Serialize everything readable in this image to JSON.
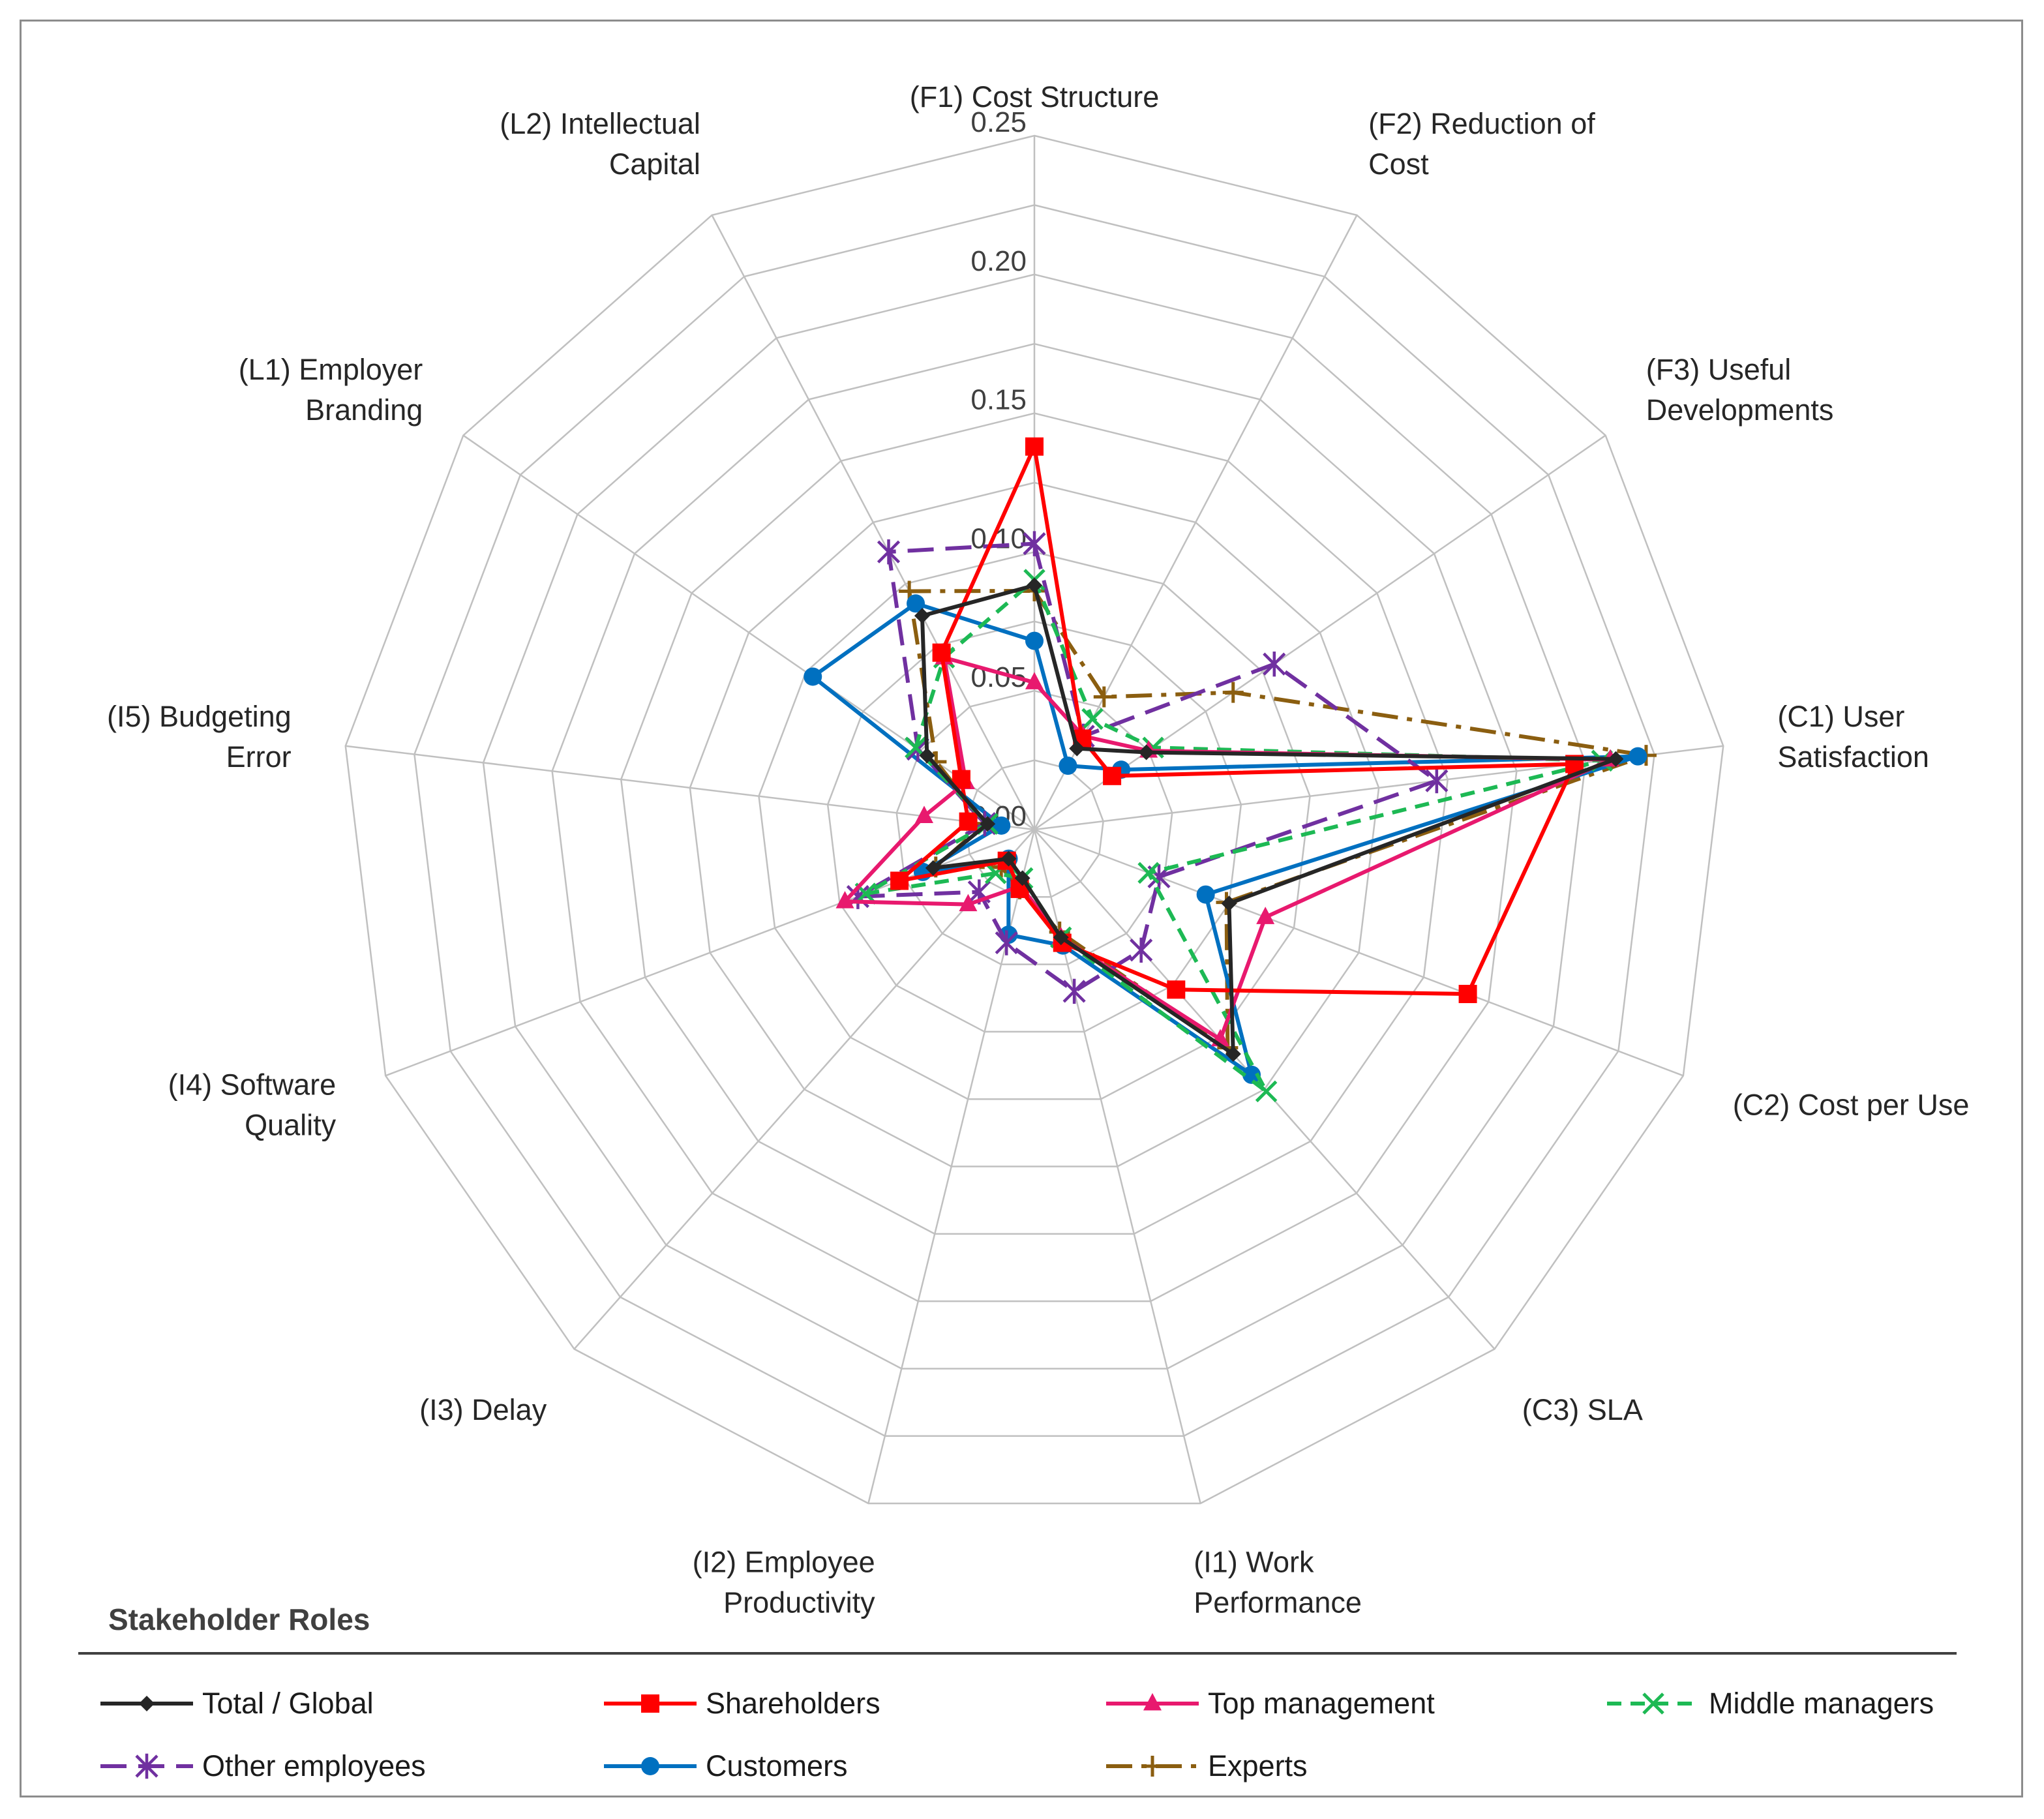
{
  "chart_data": {
    "type": "radar",
    "axes": [
      {
        "line1": "(F1) Cost Structure",
        "line2": ""
      },
      {
        "line1": "(F2) Reduction of",
        "line2": "Cost"
      },
      {
        "line1": "(F3) Useful",
        "line2": "Developments"
      },
      {
        "line1": "(C1) User",
        "line2": "Satisfaction"
      },
      {
        "line1": "(C2) Cost per Use",
        "line2": ""
      },
      {
        "line1": "(C3) SLA",
        "line2": ""
      },
      {
        "line1": "(I1) Work",
        "line2": "Performance"
      },
      {
        "line1": "(I2) Employee",
        "line2": "Productivity"
      },
      {
        "line1": "(I3) Delay",
        "line2": ""
      },
      {
        "line1": "(I4) Software",
        "line2": "Quality"
      },
      {
        "line1": "(I5) Budgeting",
        "line2": "Error"
      },
      {
        "line1": "(L1) Employer",
        "line2": "Branding"
      },
      {
        "line1": "(L2) Intellectual",
        "line2": "Capital"
      }
    ],
    "rlim": [
      0,
      0.25
    ],
    "ticks": [
      "0.00",
      "0.05",
      "0.10",
      "0.15",
      "0.20",
      "0.25"
    ],
    "grid": true,
    "legend_position": "bottom",
    "legend_title": "Stakeholder Roles",
    "series": [
      {
        "name": "Total / Global",
        "color": "#262626",
        "marker": "diamond",
        "dash": "solid",
        "values": [
          0.088,
          0.033,
          0.049,
          0.211,
          0.075,
          0.108,
          0.04,
          0.018,
          0.014,
          0.039,
          0.017,
          0.047,
          0.087
        ]
      },
      {
        "name": "Shareholders",
        "color": "#ff0000",
        "marker": "square",
        "dash": "solid",
        "values": [
          0.138,
          0.037,
          0.034,
          0.196,
          0.167,
          0.077,
          0.042,
          0.022,
          0.015,
          0.052,
          0.024,
          0.032,
          0.072
        ]
      },
      {
        "name": "Top management",
        "color": "#e8196e",
        "marker": "triangle",
        "dash": "solid",
        "values": [
          0.053,
          0.038,
          0.05,
          0.209,
          0.089,
          0.101,
          0.04,
          0.021,
          0.036,
          0.073,
          0.04,
          0.03,
          0.07
        ]
      },
      {
        "name": "Middle managers",
        "color": "#1db954",
        "marker": "x",
        "dash": "dash",
        "values": [
          0.09,
          0.045,
          0.052,
          0.206,
          0.044,
          0.126,
          0.04,
          0.018,
          0.021,
          0.065,
          0.017,
          0.052,
          0.07
        ]
      },
      {
        "name": "Other employees",
        "color": "#7030a0",
        "marker": "star",
        "dash": "longdash",
        "values": [
          0.103,
          0.038,
          0.105,
          0.146,
          0.048,
          0.058,
          0.06,
          0.042,
          0.03,
          0.068,
          0.018,
          0.051,
          0.113
        ]
      },
      {
        "name": "Customers",
        "color": "#0070c0",
        "marker": "circle",
        "dash": "solid",
        "values": [
          0.068,
          0.026,
          0.038,
          0.219,
          0.066,
          0.118,
          0.043,
          0.039,
          0.014,
          0.043,
          0.012,
          0.097,
          0.092
        ]
      },
      {
        "name": "Experts",
        "color": "#8b5e10",
        "marker": "plus",
        "dash": "dashdot",
        "values": [
          0.086,
          0.054,
          0.087,
          0.222,
          0.074,
          0.105,
          0.038,
          0.022,
          0.018,
          0.038,
          0.018,
          0.043,
          0.097
        ]
      }
    ]
  }
}
